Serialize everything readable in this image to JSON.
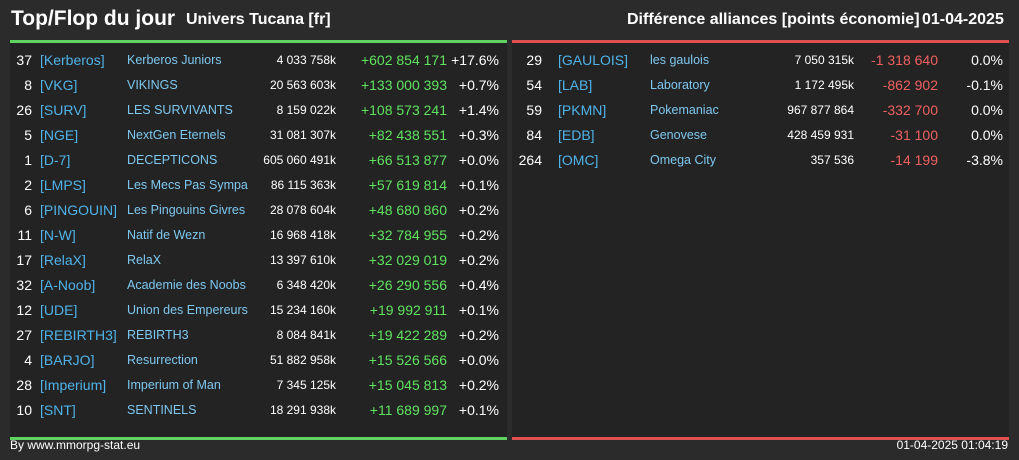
{
  "header": {
    "title": "Top/Flop du jour",
    "subtitle": "Univers Tucana [fr]",
    "right_title": "Différence alliances [points économie]",
    "date": "01-04-2025"
  },
  "colors": {
    "top_accent": "#5fd35f",
    "flop_accent": "#e05050",
    "tag": "#4fb3ea",
    "positive": "#5fe35f",
    "negative": "#f06060"
  },
  "top": [
    {
      "rank": "37",
      "tag": "[Kerberos]",
      "name": "Kerberos Juniors",
      "score": "4 033 758k",
      "diff": "+602 854 171",
      "pct": "+17.6%"
    },
    {
      "rank": "8",
      "tag": "[VKG]",
      "name": "VIKINGS",
      "score": "20 563 603k",
      "diff": "+133 000 393",
      "pct": "+0.7%"
    },
    {
      "rank": "26",
      "tag": "[SURV]",
      "name": "LES SURVIVANTS",
      "score": "8 159 022k",
      "diff": "+108 573 241",
      "pct": "+1.4%"
    },
    {
      "rank": "5",
      "tag": "[NGE]",
      "name": "NextGen Eternels",
      "score": "31 081 307k",
      "diff": "+82 438 551",
      "pct": "+0.3%"
    },
    {
      "rank": "1",
      "tag": "[D-7]",
      "name": "DECEPTICONS",
      "score": "605 060 491k",
      "diff": "+66 513 877",
      "pct": "+0.0%"
    },
    {
      "rank": "2",
      "tag": "[LMPS]",
      "name": "Les Mecs Pas Sympa",
      "score": "86 115 363k",
      "diff": "+57 619 814",
      "pct": "+0.1%"
    },
    {
      "rank": "6",
      "tag": "[PINGOUIN]",
      "name": "Les Pingouins Givres",
      "score": "28 078 604k",
      "diff": "+48 680 860",
      "pct": "+0.2%"
    },
    {
      "rank": "11",
      "tag": "[N-W]",
      "name": "Natif de Wezn",
      "score": "16 968 418k",
      "diff": "+32 784 955",
      "pct": "+0.2%"
    },
    {
      "rank": "17",
      "tag": "[RelaX]",
      "name": "RelaX",
      "score": "13 397 610k",
      "diff": "+32 029 019",
      "pct": "+0.2%"
    },
    {
      "rank": "32",
      "tag": "[A-Noob]",
      "name": "Academie des Noobs",
      "score": "6 348 420k",
      "diff": "+26 290 556",
      "pct": "+0.4%"
    },
    {
      "rank": "12",
      "tag": "[UDE]",
      "name": "Union des Empereurs",
      "score": "15 234 160k",
      "diff": "+19 992 911",
      "pct": "+0.1%"
    },
    {
      "rank": "27",
      "tag": "[REBIRTH3]",
      "name": "REBIRTH3",
      "score": "8 084 841k",
      "diff": "+19 422 289",
      "pct": "+0.2%"
    },
    {
      "rank": "4",
      "tag": "[BARJO]",
      "name": "Resurrection",
      "score": "51 882 958k",
      "diff": "+15 526 566",
      "pct": "+0.0%"
    },
    {
      "rank": "28",
      "tag": "[Imperium]",
      "name": "Imperium of Man",
      "score": "7 345 125k",
      "diff": "+15 045 813",
      "pct": "+0.2%"
    },
    {
      "rank": "10",
      "tag": "[SNT]",
      "name": "SENTINELS",
      "score": "18 291 938k",
      "diff": "+11 689 997",
      "pct": "+0.1%"
    }
  ],
  "flop": [
    {
      "rank": "29",
      "tag": "[GAULOIS]",
      "name": "les gaulois",
      "score": "7 050 315k",
      "diff": "-1 318 640",
      "pct": "0.0%"
    },
    {
      "rank": "54",
      "tag": "[LAB]",
      "name": "Laboratory",
      "score": "1 172 495k",
      "diff": "-862 902",
      "pct": "-0.1%"
    },
    {
      "rank": "59",
      "tag": "[PKMN]",
      "name": "Pokemaniac",
      "score": "967 877 864",
      "diff": "-332 700",
      "pct": "0.0%"
    },
    {
      "rank": "84",
      "tag": "[EDB]",
      "name": "Genovese",
      "score": "428 459 931",
      "diff": "-31 100",
      "pct": "0.0%"
    },
    {
      "rank": "264",
      "tag": "[OMC]",
      "name": "Omega City",
      "score": "357 536",
      "diff": "-14 199",
      "pct": "-3.8%"
    }
  ],
  "footer": {
    "credit": "By www.mmorpg-stat.eu",
    "timestamp": "01-04-2025 01:04:19"
  }
}
